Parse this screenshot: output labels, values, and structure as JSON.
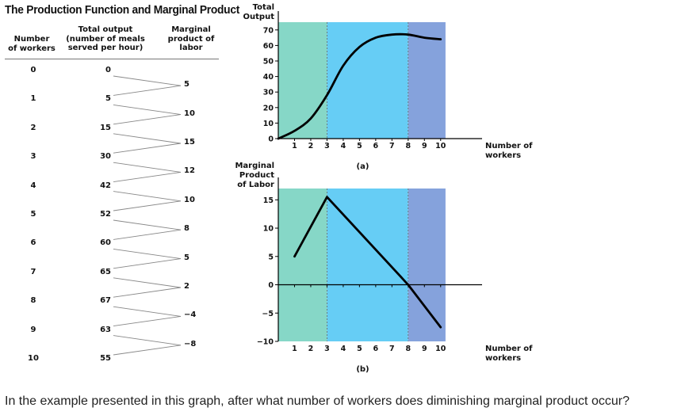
{
  "title": "The Production Function and Marginal Product",
  "table": {
    "headers": {
      "workers": [
        "Number",
        "of workers"
      ],
      "output": [
        "Total output",
        "(number of meals",
        "served per hour)"
      ],
      "mp": [
        "Marginal",
        "product of",
        "labor"
      ]
    },
    "workers": [
      "0",
      "1",
      "2",
      "3",
      "4",
      "5",
      "6",
      "7",
      "8",
      "9",
      "10"
    ],
    "total_output": [
      "0",
      "5",
      "15",
      "30",
      "42",
      "52",
      "60",
      "65",
      "67",
      "63",
      "55"
    ],
    "marginal_product": [
      "5",
      "10",
      "15",
      "12",
      "10",
      "8",
      "5",
      "2",
      "−4",
      "−8"
    ]
  },
  "chart_data": [
    {
      "type": "line",
      "panel_label": "(a)",
      "ylabel": [
        "Total",
        "Output"
      ],
      "xlabel": [
        "Number of",
        "workers"
      ],
      "x": [
        0,
        1,
        2,
        3,
        4,
        5,
        6,
        7,
        8,
        9,
        10
      ],
      "y": [
        0,
        5,
        15,
        30,
        42,
        52,
        60,
        65,
        67,
        63,
        55
      ],
      "curve_values": [
        0,
        5,
        13,
        28,
        47,
        59,
        65,
        67,
        67,
        65,
        64
      ],
      "xlim": [
        0,
        10.5
      ],
      "ylim": [
        0,
        75
      ],
      "xticks": [
        "1",
        "2",
        "3",
        "4",
        "5",
        "6",
        "7",
        "8",
        "9",
        "10"
      ],
      "yticks": [
        "0",
        "10",
        "20",
        "30",
        "40",
        "50",
        "60",
        "70"
      ],
      "regions": [
        {
          "from": 0,
          "to": 3,
          "color": "#86d7c7"
        },
        {
          "from": 3,
          "to": 8,
          "color": "#66cdf5"
        },
        {
          "from": 8,
          "to": 10.3,
          "color": "#85a2dc"
        }
      ]
    },
    {
      "type": "line",
      "panel_label": "(b)",
      "ylabel": [
        "Marginal",
        "Product",
        "of Labor"
      ],
      "xlabel": [
        "Number of",
        "workers"
      ],
      "x": [
        1,
        3,
        8,
        10
      ],
      "y": [
        5,
        15.5,
        0,
        -7.5
      ],
      "xlim": [
        0,
        10.5
      ],
      "ylim": [
        -10,
        17
      ],
      "xticks": [
        "1",
        "2",
        "3",
        "4",
        "5",
        "6",
        "7",
        "8",
        "9",
        "10"
      ],
      "yticks": [
        "−10",
        "−5",
        "0",
        "5",
        "10",
        "15"
      ],
      "regions": [
        {
          "from": 0,
          "to": 3,
          "color": "#86d7c7"
        },
        {
          "from": 3,
          "to": 8,
          "color": "#66cdf5"
        },
        {
          "from": 8,
          "to": 10.3,
          "color": "#85a2dc"
        }
      ]
    }
  ],
  "question": "In the example presented in this graph, after what number of workers does diminishing marginal product occur?"
}
